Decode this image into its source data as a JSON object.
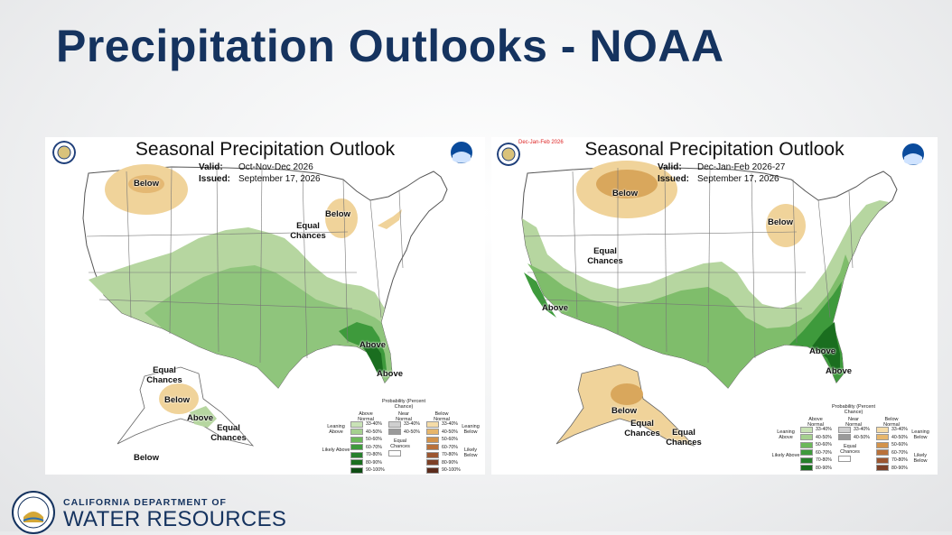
{
  "slide": {
    "title": "Precipitation Outlooks - NOAA"
  },
  "colors": {
    "title": "#15335f",
    "above_light": "#b6d6a0",
    "above_mid": "#7fbd6b",
    "above_dark": "#3e9a3c",
    "above_darkest": "#1a6e1f",
    "below_light": "#f0d39a",
    "below_mid": "#d9a75c"
  },
  "maps": [
    {
      "title": "Seasonal Precipitation Outlook",
      "valid_label": "Valid:",
      "valid_value": "Oct-Nov-Dec 2026",
      "issued_label": "Issued:",
      "issued_value": "September 17, 2026",
      "corner_tag": "",
      "labels": [
        "Below",
        "Below",
        "Equal Chances",
        "Above",
        "Above",
        "Equal Chances",
        "Below",
        "Above",
        "Equal Chances",
        "Below"
      ],
      "icons": [
        "doc-seal-icon",
        "noaa-logo-icon"
      ]
    },
    {
      "title": "Seasonal Precipitation Outlook",
      "valid_label": "Valid:",
      "valid_value": "Dec-Jan-Feb 2026-27",
      "issued_label": "Issued:",
      "issued_value": "September 17, 2026",
      "corner_tag": "Dec-Jan-Feb 2026",
      "labels": [
        "Below",
        "Below",
        "Equal Chances",
        "Above",
        "Above",
        "Above",
        "Below",
        "Equal Chances",
        "Equal Chances"
      ],
      "icons": [
        "doc-seal-icon",
        "noaa-logo-icon"
      ]
    }
  ],
  "legend": {
    "title": "Probability (Percent Chance)",
    "above_header": "Above Normal",
    "near_header": "Near Normal",
    "below_header": "Below Normal",
    "above_ranges": [
      "33-40%",
      "40-50%",
      "50-60%",
      "60-70%",
      "70-80%",
      "80-90%",
      "90-100%"
    ],
    "near_ranges": [
      "33-40%",
      "40-50%"
    ],
    "below_ranges": [
      "33-40%",
      "40-50%",
      "50-60%",
      "60-70%",
      "70-80%",
      "80-90%",
      "90-100%"
    ],
    "equal_chances": "Equal Chances",
    "leaning_above": "Leaning Above",
    "likely_above": "Likely Above",
    "leaning_below": "Leaning Below",
    "likely_below": "Likely Below"
  },
  "footer": {
    "org_line1": "CALIFORNIA DEPARTMENT OF",
    "org_line2": "WATER RESOURCES",
    "logo": "dwr-seal-icon"
  }
}
